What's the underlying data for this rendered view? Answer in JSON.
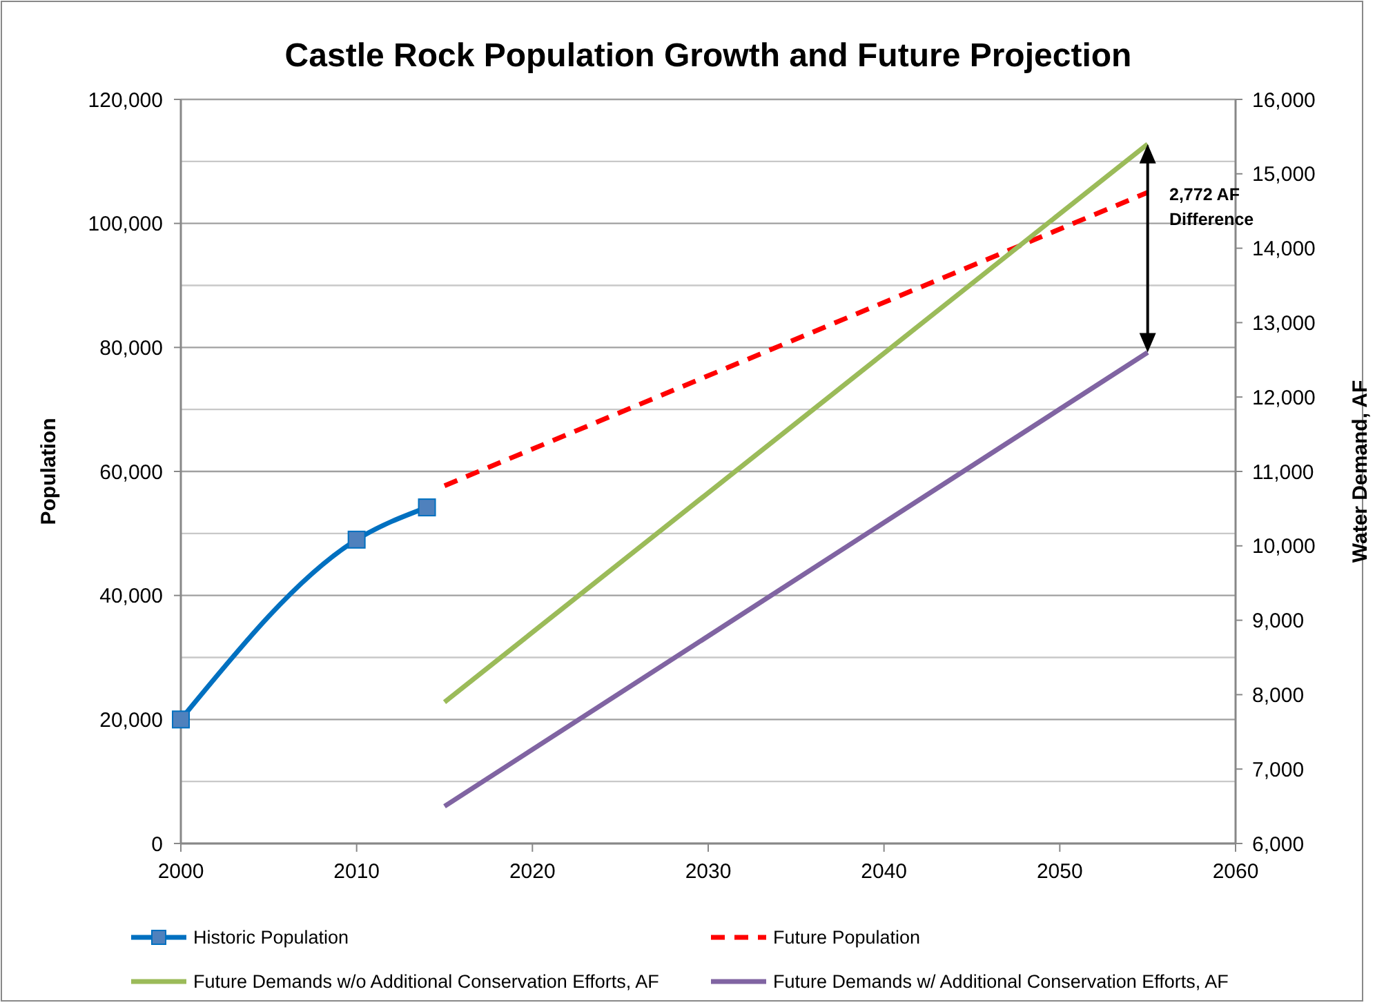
{
  "chart_data": {
    "type": "line",
    "title": "Castle Rock Population Growth and Future Projection",
    "ylabel": "Population",
    "y2label": "Water Demand, AF",
    "xlim": [
      2000,
      2060
    ],
    "xticks": [
      2000,
      2010,
      2020,
      2030,
      2040,
      2050,
      2060
    ],
    "ylim": [
      0,
      120000
    ],
    "yticks": [
      {
        "value": 0,
        "label": "0"
      },
      {
        "value": 10000,
        "label": null
      },
      {
        "value": 20000,
        "label": "20,000"
      },
      {
        "value": 30000,
        "label": null
      },
      {
        "value": 40000,
        "label": "40,000"
      },
      {
        "value": 50000,
        "label": null
      },
      {
        "value": 60000,
        "label": "60,000"
      },
      {
        "value": 70000,
        "label": null
      },
      {
        "value": 80000,
        "label": "80,000"
      },
      {
        "value": 90000,
        "label": null
      },
      {
        "value": 100000,
        "label": "100,000"
      },
      {
        "value": 110000,
        "label": null
      },
      {
        "value": 120000,
        "label": "120,000"
      }
    ],
    "y2lim": [
      6000,
      16000
    ],
    "y2ticks": [
      {
        "value": 6000,
        "label": "6,000"
      },
      {
        "value": 7000,
        "label": "7,000"
      },
      {
        "value": 8000,
        "label": "8,000"
      },
      {
        "value": 9000,
        "label": "9,000"
      },
      {
        "value": 10000,
        "label": "10,000"
      },
      {
        "value": 11000,
        "label": "11,000"
      },
      {
        "value": 12000,
        "label": "12,000"
      },
      {
        "value": 13000,
        "label": "13,000"
      },
      {
        "value": 14000,
        "label": "14,000"
      },
      {
        "value": 15000,
        "label": "15,000"
      },
      {
        "value": 16000,
        "label": "16,000"
      }
    ],
    "grid": "y",
    "legend": "bottom",
    "series": [
      {
        "name": "Historic Population",
        "color": "#0070c0",
        "x": [
          2000,
          2010,
          2014
        ],
        "values": [
          20000,
          49000,
          54200
        ],
        "marker": "square",
        "line_style": "solid"
      },
      {
        "name": "Future Population",
        "color": "#ff0000",
        "x": [
          2015,
          2055
        ],
        "values": [
          57700,
          105000
        ],
        "marker": "none",
        "line_style": "dashed"
      },
      {
        "name": "Future Demands w/o Additional Conservation Efforts, AF",
        "color": "#9bbb59",
        "x": [
          2015,
          2055
        ],
        "values": [
          7900,
          15400
        ],
        "axis": "y2",
        "marker": "none",
        "line_style": "solid"
      },
      {
        "name": "Future Demands w/ Additional Conservation Efforts, AF",
        "color": "#8064a2",
        "x": [
          2015,
          2055
        ],
        "values": [
          6500,
          12600
        ],
        "axis": "y2",
        "marker": "none",
        "line_style": "solid"
      }
    ],
    "annotations": [
      "2,772 AF\nDifference"
    ]
  }
}
